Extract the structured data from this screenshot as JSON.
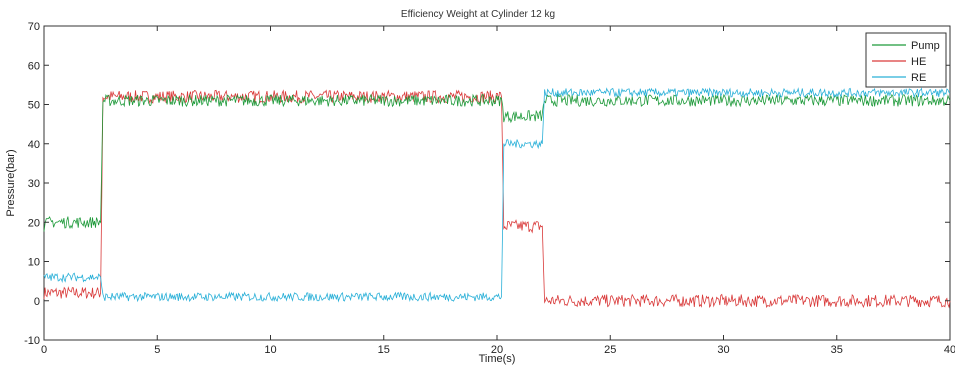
{
  "chart_data": {
    "type": "line",
    "title": "Efficiency   Weight at Cylinder  12 kg",
    "xlabel": "Time(s)",
    "ylabel": "Pressure(bar)",
    "xlim": [
      0,
      40
    ],
    "ylim": [
      -10,
      70
    ],
    "xticks": [
      "0",
      "5",
      "10",
      "15",
      "20",
      "25",
      "30",
      "35",
      "40"
    ],
    "yticks": [
      "-10",
      "0",
      "10",
      "20",
      "30",
      "40",
      "50",
      "60",
      "70"
    ],
    "grid": false,
    "legend_position": "top-right",
    "series": [
      {
        "name": "Pump",
        "color": "#1e9a3a",
        "x": [
          0,
          0.2,
          2.5,
          2.6,
          20.2,
          20.3,
          22.0,
          22.1,
          40
        ],
        "y": [
          19,
          20,
          20,
          51,
          51,
          47,
          47,
          51,
          51
        ]
      },
      {
        "name": "HE",
        "color": "#d93a3a",
        "x": [
          0,
          2.5,
          2.6,
          20.2,
          20.3,
          22.0,
          22.1,
          40
        ],
        "y": [
          2,
          2,
          52,
          52,
          19,
          19,
          0,
          0
        ]
      },
      {
        "name": "RE",
        "color": "#2ab0d8",
        "x": [
          0,
          2.5,
          2.6,
          20.2,
          20.3,
          22.0,
          22.1,
          40
        ],
        "y": [
          6,
          6,
          1,
          1,
          40,
          40,
          53,
          53
        ]
      }
    ]
  }
}
